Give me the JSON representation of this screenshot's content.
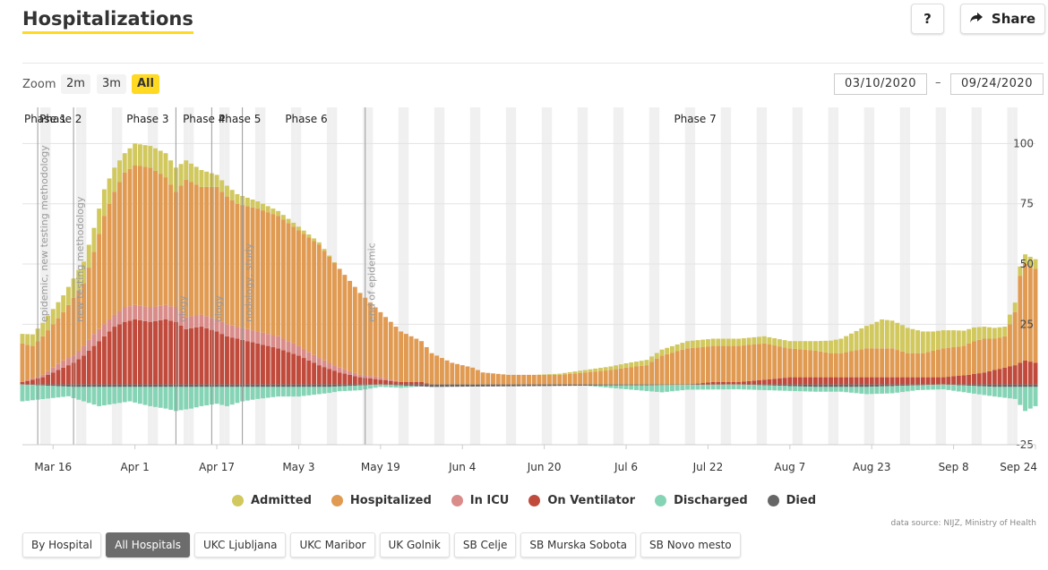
{
  "header": {
    "title": "Hospitalizations",
    "help_label": "?",
    "share_label": "Share"
  },
  "zoom": {
    "label": "Zoom",
    "options": [
      "2m",
      "3m",
      "All"
    ],
    "selected": "All"
  },
  "date_range": {
    "from": "03/10/2020",
    "to": "09/24/2020",
    "separator": "–"
  },
  "legend_items": [
    {
      "label": "Admitted",
      "color": "#d1c85e"
    },
    {
      "label": "Hospitalized",
      "color": "#e09a52"
    },
    {
      "label": "In ICU",
      "color": "#d98c89"
    },
    {
      "label": "On Ventilator",
      "color": "#c04a3b"
    },
    {
      "label": "Discharged",
      "color": "#86d4b6"
    },
    {
      "label": "Died",
      "color": "#666666"
    }
  ],
  "source": "data source: NIJZ, Ministry of Health",
  "tabs": [
    {
      "label": "By Hospital",
      "active": false
    },
    {
      "label": "All Hospitals",
      "active": true
    },
    {
      "label": "UKC Ljubljana",
      "active": false
    },
    {
      "label": "UKC Maribor",
      "active": false
    },
    {
      "label": "UK Golnik",
      "active": false
    },
    {
      "label": "SB Celje",
      "active": false
    },
    {
      "label": "SB Murska Sobota",
      "active": false
    },
    {
      "label": "SB Novo mesto",
      "active": false
    }
  ],
  "chart_data": {
    "type": "bar",
    "start_date": "2020-03-10",
    "end_date": "2020-09-24",
    "ylim": [
      -25,
      115
    ],
    "y_ticks": [
      100,
      75,
      50,
      25,
      -25
    ],
    "x_ticks": [
      {
        "date": "2020-03-16",
        "label": "Mar 16"
      },
      {
        "date": "2020-04-01",
        "label": "Apr 1"
      },
      {
        "date": "2020-04-17",
        "label": "Apr 17"
      },
      {
        "date": "2020-05-03",
        "label": "May 3"
      },
      {
        "date": "2020-05-19",
        "label": "May 19"
      },
      {
        "date": "2020-06-04",
        "label": "Jun 4"
      },
      {
        "date": "2020-06-20",
        "label": "Jun 20"
      },
      {
        "date": "2020-07-06",
        "label": "Jul 6"
      },
      {
        "date": "2020-07-22",
        "label": "Jul 22"
      },
      {
        "date": "2020-08-07",
        "label": "Aug 7"
      },
      {
        "date": "2020-08-23",
        "label": "Aug 23"
      },
      {
        "date": "2020-09-08",
        "label": "Sep 8"
      },
      {
        "date": "2020-09-24",
        "label": "Sep 24"
      }
    ],
    "phases": [
      {
        "label": "Phase 1",
        "date": "2020-03-10"
      },
      {
        "label": "Phase 2",
        "date": "2020-03-13"
      },
      {
        "label": "Phase 3",
        "date": "2020-03-30"
      },
      {
        "label": "Phase 4",
        "date": "2020-04-10"
      },
      {
        "label": "Phase 5",
        "date": "2020-04-17"
      },
      {
        "label": "Phase 6",
        "date": "2020-04-30"
      },
      {
        "label": "Phase 7",
        "date": "2020-07-15"
      }
    ],
    "markers": [
      {
        "date": "2020-03-13",
        "label": "epidemic, new testing methodology"
      },
      {
        "date": "2020-03-20",
        "label": "new testing methodology"
      },
      {
        "date": "2020-04-09",
        "label": "ology"
      },
      {
        "date": "2020-04-16",
        "label": "ology"
      },
      {
        "date": "2020-04-22",
        "label": "nodology, study"
      },
      {
        "date": "2020-05-16",
        "label": "end of epidemic"
      }
    ],
    "series": [
      {
        "name": "Admitted",
        "anchors": [
          [
            0,
            4
          ],
          [
            5,
            6
          ],
          [
            8,
            7
          ],
          [
            12,
            9
          ],
          [
            14,
            10
          ],
          [
            16,
            11
          ],
          [
            18,
            10
          ],
          [
            20,
            8
          ],
          [
            22,
            9
          ],
          [
            25,
            9
          ],
          [
            28,
            10
          ],
          [
            30,
            10
          ],
          [
            32,
            8
          ],
          [
            35,
            7
          ],
          [
            38,
            5
          ],
          [
            42,
            4
          ],
          [
            46,
            3
          ],
          [
            50,
            2
          ],
          [
            54,
            1.5
          ],
          [
            58,
            1
          ],
          [
            62,
            0
          ],
          [
            80,
            0
          ],
          [
            100,
            0
          ],
          [
            110,
            1
          ],
          [
            120,
            2
          ],
          [
            130,
            3
          ],
          [
            140,
            3
          ],
          [
            150,
            3
          ],
          [
            155,
            4
          ],
          [
            160,
            6
          ],
          [
            163,
            8
          ],
          [
            166,
            10
          ],
          [
            168,
            12
          ],
          [
            172,
            11
          ],
          [
            176,
            9
          ],
          [
            178,
            8
          ],
          [
            182,
            7
          ],
          [
            185,
            6
          ],
          [
            188,
            5
          ],
          [
            192,
            4
          ],
          [
            194,
            4
          ],
          [
            198,
            4
          ]
        ]
      },
      {
        "name": "Hospitalized",
        "anchors": [
          [
            0,
            17
          ],
          [
            2,
            16
          ],
          [
            4,
            20
          ],
          [
            6,
            25
          ],
          [
            8,
            30
          ],
          [
            10,
            36
          ],
          [
            12,
            42
          ],
          [
            14,
            55
          ],
          [
            16,
            70
          ],
          [
            18,
            80
          ],
          [
            20,
            88
          ],
          [
            22,
            91
          ],
          [
            25,
            90
          ],
          [
            28,
            86
          ],
          [
            30,
            80
          ],
          [
            32,
            85
          ],
          [
            35,
            82
          ],
          [
            38,
            82
          ],
          [
            40,
            78
          ],
          [
            42,
            75
          ],
          [
            46,
            73
          ],
          [
            50,
            70
          ],
          [
            54,
            64
          ],
          [
            58,
            58
          ],
          [
            62,
            48
          ],
          [
            66,
            38
          ],
          [
            70,
            30
          ],
          [
            74,
            22
          ],
          [
            78,
            18
          ],
          [
            80,
            13
          ],
          [
            84,
            9
          ],
          [
            88,
            7
          ],
          [
            90,
            5
          ],
          [
            95,
            4
          ],
          [
            100,
            4
          ],
          [
            105,
            4
          ],
          [
            110,
            5
          ],
          [
            115,
            6
          ],
          [
            118,
            7
          ],
          [
            122,
            8
          ],
          [
            125,
            12
          ],
          [
            130,
            15
          ],
          [
            135,
            16
          ],
          [
            140,
            16
          ],
          [
            145,
            17
          ],
          [
            150,
            15
          ],
          [
            155,
            14
          ],
          [
            158,
            13
          ],
          [
            160,
            13
          ],
          [
            165,
            15
          ],
          [
            170,
            15
          ],
          [
            173,
            13
          ],
          [
            176,
            13
          ],
          [
            180,
            15
          ],
          [
            184,
            16
          ],
          [
            186,
            18
          ],
          [
            188,
            19
          ],
          [
            190,
            19
          ],
          [
            192,
            20
          ],
          [
            193,
            25
          ],
          [
            194,
            30
          ],
          [
            195,
            45
          ],
          [
            196,
            50
          ],
          [
            198,
            48
          ]
        ]
      },
      {
        "name": "In ICU",
        "anchors": [
          [
            0,
            0
          ],
          [
            4,
            1
          ],
          [
            6,
            2
          ],
          [
            8,
            3
          ],
          [
            10,
            3
          ],
          [
            12,
            4
          ],
          [
            14,
            5
          ],
          [
            16,
            5
          ],
          [
            18,
            5
          ],
          [
            20,
            6
          ],
          [
            22,
            6
          ],
          [
            25,
            6
          ],
          [
            28,
            6
          ],
          [
            30,
            6
          ],
          [
            32,
            5
          ],
          [
            35,
            5
          ],
          [
            38,
            5
          ],
          [
            40,
            5
          ],
          [
            42,
            5
          ],
          [
            46,
            5
          ],
          [
            50,
            5
          ],
          [
            54,
            4
          ],
          [
            58,
            3
          ],
          [
            62,
            2
          ],
          [
            66,
            1
          ],
          [
            70,
            1
          ],
          [
            74,
            0
          ],
          [
            80,
            0
          ],
          [
            100,
            0
          ],
          [
            120,
            0
          ],
          [
            140,
            0
          ],
          [
            160,
            0
          ],
          [
            170,
            0
          ],
          [
            180,
            0
          ],
          [
            190,
            0
          ],
          [
            194,
            0
          ],
          [
            198,
            0
          ]
        ]
      },
      {
        "name": "On Ventilator",
        "anchors": [
          [
            0,
            1
          ],
          [
            2,
            2
          ],
          [
            4,
            3
          ],
          [
            6,
            5
          ],
          [
            8,
            7
          ],
          [
            10,
            9
          ],
          [
            12,
            12
          ],
          [
            14,
            16
          ],
          [
            16,
            20
          ],
          [
            18,
            24
          ],
          [
            20,
            26
          ],
          [
            22,
            27
          ],
          [
            25,
            26
          ],
          [
            28,
            27
          ],
          [
            30,
            26
          ],
          [
            32,
            23
          ],
          [
            35,
            24
          ],
          [
            38,
            22
          ],
          [
            40,
            20
          ],
          [
            42,
            19
          ],
          [
            46,
            17
          ],
          [
            50,
            15
          ],
          [
            54,
            12
          ],
          [
            58,
            8
          ],
          [
            62,
            5
          ],
          [
            66,
            3
          ],
          [
            70,
            2
          ],
          [
            74,
            1
          ],
          [
            78,
            1
          ],
          [
            80,
            0
          ],
          [
            100,
            0
          ],
          [
            120,
            0
          ],
          [
            130,
            0
          ],
          [
            135,
            1
          ],
          [
            140,
            1
          ],
          [
            145,
            2
          ],
          [
            150,
            3
          ],
          [
            155,
            3
          ],
          [
            160,
            3
          ],
          [
            165,
            3
          ],
          [
            170,
            3
          ],
          [
            175,
            3
          ],
          [
            180,
            3
          ],
          [
            185,
            4
          ],
          [
            188,
            5
          ],
          [
            190,
            6
          ],
          [
            192,
            7
          ],
          [
            194,
            8
          ],
          [
            196,
            10
          ],
          [
            198,
            9
          ]
        ]
      },
      {
        "name": "Discharged",
        "anchors": [
          [
            0,
            -7
          ],
          [
            3,
            -6
          ],
          [
            6,
            -5
          ],
          [
            9,
            -4
          ],
          [
            12,
            -6
          ],
          [
            15,
            -8
          ],
          [
            18,
            -7
          ],
          [
            21,
            -6
          ],
          [
            25,
            -8
          ],
          [
            28,
            -9
          ],
          [
            30,
            -10
          ],
          [
            33,
            -9
          ],
          [
            35,
            -8
          ],
          [
            38,
            -7
          ],
          [
            40,
            -8
          ],
          [
            43,
            -6
          ],
          [
            46,
            -5
          ],
          [
            50,
            -4
          ],
          [
            54,
            -4
          ],
          [
            58,
            -3
          ],
          [
            62,
            -2
          ],
          [
            66,
            -2
          ],
          [
            70,
            -1
          ],
          [
            74,
            -1
          ],
          [
            78,
            0
          ],
          [
            110,
            0
          ],
          [
            120,
            -2
          ],
          [
            125,
            -3
          ],
          [
            130,
            -2
          ],
          [
            140,
            -2
          ],
          [
            150,
            -2
          ],
          [
            160,
            -2
          ],
          [
            165,
            -3
          ],
          [
            170,
            -3
          ],
          [
            175,
            -2
          ],
          [
            180,
            -2
          ],
          [
            185,
            -3
          ],
          [
            190,
            -4
          ],
          [
            194,
            -5
          ],
          [
            196,
            -10
          ],
          [
            198,
            -8
          ]
        ]
      },
      {
        "name": "Died",
        "anchors": [
          [
            0,
            0
          ],
          [
            10,
            -1
          ],
          [
            20,
            -1
          ],
          [
            30,
            -1
          ],
          [
            40,
            -1
          ],
          [
            50,
            -1
          ],
          [
            60,
            -1
          ],
          [
            70,
            0
          ],
          [
            80,
            -1
          ],
          [
            140,
            0
          ],
          [
            155,
            -1
          ],
          [
            165,
            -1
          ],
          [
            180,
            0
          ],
          [
            190,
            -1
          ],
          [
            198,
            -1
          ]
        ]
      }
    ]
  }
}
